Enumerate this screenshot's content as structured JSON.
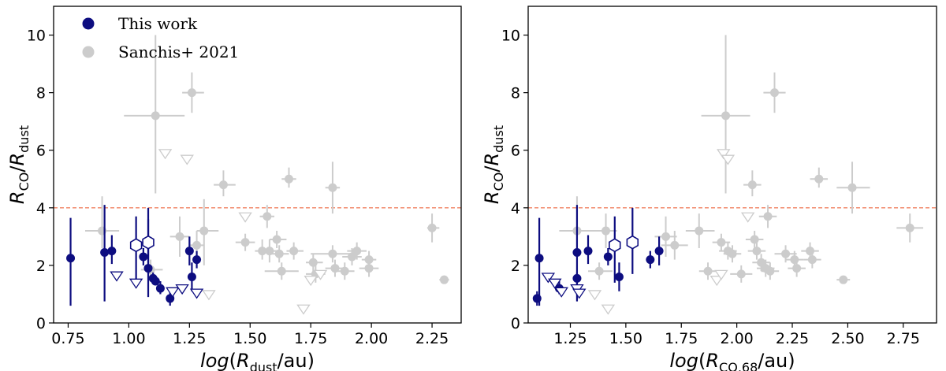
{
  "chart_data": [
    {
      "type": "scatter",
      "xlabel": "log(R_dust/au)",
      "ylabel": "R_CO/R_dust",
      "xlim": [
        0.69,
        2.37
      ],
      "ylim": [
        0,
        11
      ],
      "xticks": [
        "0.75",
        "1.00",
        "1.25",
        "1.50",
        "1.75",
        "2.00",
        "2.25"
      ],
      "yticks": [
        "0",
        "2",
        "4",
        "6",
        "8",
        "10"
      ],
      "reference_line": {
        "y": 4,
        "style": "dashed",
        "color": "#f08060"
      },
      "legend": {
        "position": "top-left",
        "entries": [
          "This work",
          "Sanchis+ 2021"
        ]
      },
      "colors": {
        "this_work": "#0d0d80",
        "sanchis": "#cccccc"
      },
      "series": [
        {
          "name": "This work",
          "marker": "filled-circle",
          "points": [
            {
              "x": 0.76,
              "y": 2.25,
              "ylo": 0.6,
              "yhi": 3.65
            },
            {
              "x": 0.9,
              "y": 2.45,
              "ylo": 0.75,
              "yhi": 4.1
            },
            {
              "x": 0.93,
              "y": 2.5,
              "ylo": 2.05,
              "yhi": 3.05
            },
            {
              "x": 1.06,
              "y": 2.3,
              "ylo": 2.0,
              "yhi": 2.6
            },
            {
              "x": 1.08,
              "y": 1.9,
              "ylo": 0.9,
              "yhi": 4.0
            },
            {
              "x": 1.1,
              "y": 1.55,
              "ylo": 1.35,
              "yhi": 1.75
            },
            {
              "x": 1.11,
              "y": 1.45,
              "ylo": 1.3,
              "yhi": 1.6
            },
            {
              "x": 1.13,
              "y": 1.2,
              "ylo": 1.0,
              "yhi": 1.45
            },
            {
              "x": 1.17,
              "y": 0.85,
              "ylo": 0.6,
              "yhi": 1.1
            },
            {
              "x": 1.25,
              "y": 2.5,
              "ylo": 2.0,
              "yhi": 3.0
            },
            {
              "x": 1.26,
              "y": 1.6,
              "ylo": 1.1,
              "yhi": 2.1
            },
            {
              "x": 1.28,
              "y": 2.2,
              "ylo": 1.9,
              "yhi": 2.5
            }
          ]
        },
        {
          "name": "This work",
          "marker": "open-hexagon",
          "points": [
            {
              "x": 1.03,
              "y": 2.7,
              "ylo": 1.4,
              "yhi": 3.7
            },
            {
              "x": 1.08,
              "y": 2.8,
              "ylo": 1.7,
              "yhi": 3.6
            }
          ]
        },
        {
          "name": "This work",
          "marker": "open-triangle-down",
          "points": [
            {
              "x": 0.95,
              "y": 1.65
            },
            {
              "x": 1.03,
              "y": 1.4
            },
            {
              "x": 1.18,
              "y": 1.1
            },
            {
              "x": 1.22,
              "y": 1.2
            },
            {
              "x": 1.28,
              "y": 1.05
            }
          ]
        },
        {
          "name": "Sanchis+ 2021",
          "marker": "filled-circle",
          "points": [
            {
              "x": 0.89,
              "y": 3.2,
              "xlo": 0.82,
              "xhi": 0.96,
              "ylo": 2.6,
              "yhi": 4.4
            },
            {
              "x": 1.09,
              "y": 1.85,
              "xlo": 1.05,
              "xhi": 1.14,
              "ylo": 1.5,
              "yhi": 2.2
            },
            {
              "x": 1.11,
              "y": 7.2,
              "xlo": 0.98,
              "xhi": 1.23,
              "ylo": 4.5,
              "yhi": 10.0
            },
            {
              "x": 1.21,
              "y": 3.0,
              "xlo": 1.17,
              "xhi": 1.25,
              "ylo": 2.3,
              "yhi": 3.7
            },
            {
              "x": 1.26,
              "y": 8.0,
              "xlo": 1.22,
              "xhi": 1.31,
              "ylo": 7.3,
              "yhi": 8.7
            },
            {
              "x": 1.28,
              "y": 2.7,
              "xlo": 1.25,
              "xhi": 1.31,
              "ylo": 2.2,
              "yhi": 3.2
            },
            {
              "x": 1.31,
              "y": 3.2,
              "xlo": 1.28,
              "xhi": 1.37,
              "ylo": 2.0,
              "yhi": 4.3
            },
            {
              "x": 1.39,
              "y": 4.8,
              "xlo": 1.35,
              "xhi": 1.44,
              "ylo": 4.4,
              "yhi": 5.3
            },
            {
              "x": 1.48,
              "y": 2.8,
              "xlo": 1.44,
              "xhi": 1.52,
              "ylo": 2.5,
              "yhi": 3.1
            },
            {
              "x": 1.55,
              "y": 2.5,
              "xlo": 1.52,
              "xhi": 1.59,
              "ylo": 2.2,
              "yhi": 2.9
            },
            {
              "x": 1.57,
              "y": 3.7,
              "xlo": 1.54,
              "xhi": 1.6,
              "ylo": 3.3,
              "yhi": 4.1
            },
            {
              "x": 1.58,
              "y": 2.5,
              "xlo": 1.54,
              "xhi": 1.62,
              "ylo": 2.1,
              "yhi": 2.9
            },
            {
              "x": 1.61,
              "y": 2.9,
              "xlo": 1.58,
              "xhi": 1.65,
              "ylo": 2.6,
              "yhi": 3.2
            },
            {
              "x": 1.62,
              "y": 2.4,
              "xlo": 1.59,
              "xhi": 1.66,
              "ylo": 2.1,
              "yhi": 2.7
            },
            {
              "x": 1.63,
              "y": 1.8,
              "xlo": 1.56,
              "xhi": 1.7,
              "ylo": 1.5,
              "yhi": 2.1
            },
            {
              "x": 1.66,
              "y": 5.0,
              "xlo": 1.63,
              "xhi": 1.69,
              "ylo": 4.7,
              "yhi": 5.4
            },
            {
              "x": 1.68,
              "y": 2.5,
              "xlo": 1.65,
              "xhi": 1.72,
              "ylo": 2.2,
              "yhi": 2.8
            },
            {
              "x": 1.76,
              "y": 2.1,
              "xlo": 1.73,
              "xhi": 1.8,
              "ylo": 1.8,
              "yhi": 2.4
            },
            {
              "x": 1.77,
              "y": 1.7,
              "xlo": 1.73,
              "xhi": 1.81,
              "ylo": 1.4,
              "yhi": 2.0
            },
            {
              "x": 1.84,
              "y": 4.7,
              "xlo": 1.81,
              "xhi": 1.87,
              "ylo": 3.8,
              "yhi": 5.6
            },
            {
              "x": 1.84,
              "y": 2.4,
              "xlo": 1.75,
              "xhi": 1.93,
              "ylo": 2.1,
              "yhi": 2.7
            },
            {
              "x": 1.85,
              "y": 1.9,
              "xlo": 1.81,
              "xhi": 1.89,
              "ylo": 1.6,
              "yhi": 2.2
            },
            {
              "x": 1.89,
              "y": 1.8,
              "xlo": 1.86,
              "xhi": 1.93,
              "ylo": 1.5,
              "yhi": 2.1
            },
            {
              "x": 1.92,
              "y": 2.3,
              "xlo": 1.88,
              "xhi": 1.96,
              "ylo": 2.0,
              "yhi": 2.6
            },
            {
              "x": 1.94,
              "y": 2.5,
              "xlo": 1.9,
              "xhi": 1.98,
              "ylo": 2.2,
              "yhi": 2.8
            },
            {
              "x": 1.99,
              "y": 2.2,
              "xlo": 1.96,
              "xhi": 2.02,
              "ylo": 1.9,
              "yhi": 2.5
            },
            {
              "x": 1.99,
              "y": 1.9,
              "xlo": 1.95,
              "xhi": 2.03,
              "ylo": 1.6,
              "yhi": 2.2
            },
            {
              "x": 2.25,
              "y": 3.3,
              "xlo": 2.23,
              "xhi": 2.28,
              "ylo": 2.8,
              "yhi": 3.8
            },
            {
              "x": 2.3,
              "y": 1.5,
              "xlo": 2.28,
              "xhi": 2.32,
              "ylo": 1.4,
              "yhi": 1.6
            }
          ]
        },
        {
          "name": "Sanchis+ 2021",
          "marker": "open-triangle-down",
          "points": [
            {
              "x": 1.15,
              "y": 5.9
            },
            {
              "x": 1.24,
              "y": 5.7
            },
            {
              "x": 1.33,
              "y": 1.0
            },
            {
              "x": 1.48,
              "y": 3.7
            },
            {
              "x": 1.72,
              "y": 0.5
            },
            {
              "x": 1.75,
              "y": 1.5
            },
            {
              "x": 1.79,
              "y": 1.7
            }
          ]
        }
      ]
    },
    {
      "type": "scatter",
      "xlabel": "log(R_CO,68/au)",
      "ylabel": "R_CO/R_dust",
      "xlim": [
        1.06,
        2.9
      ],
      "ylim": [
        0,
        11
      ],
      "xticks": [
        "1.25",
        "1.50",
        "1.75",
        "2.00",
        "2.25",
        "2.50",
        "2.75"
      ],
      "yticks": [
        "0",
        "2",
        "4",
        "6",
        "8",
        "10"
      ],
      "reference_line": {
        "y": 4,
        "style": "dashed",
        "color": "#f08060"
      },
      "colors": {
        "this_work": "#0d0d80",
        "sanchis": "#cccccc"
      },
      "series": [
        {
          "name": "This work",
          "marker": "filled-circle",
          "points": [
            {
              "x": 1.1,
              "y": 0.85,
              "ylo": 0.6,
              "yhi": 1.1
            },
            {
              "x": 1.11,
              "y": 2.25,
              "ylo": 0.6,
              "yhi": 3.65
            },
            {
              "x": 1.2,
              "y": 1.2,
              "ylo": 1.0,
              "yhi": 1.45
            },
            {
              "x": 1.28,
              "y": 2.45,
              "ylo": 0.75,
              "yhi": 4.1
            },
            {
              "x": 1.28,
              "y": 1.55,
              "ylo": 1.3,
              "yhi": 1.75
            },
            {
              "x": 1.33,
              "y": 2.5,
              "ylo": 2.05,
              "yhi": 3.05
            },
            {
              "x": 1.42,
              "y": 2.3,
              "ylo": 2.0,
              "yhi": 2.6
            },
            {
              "x": 1.47,
              "y": 1.6,
              "ylo": 1.1,
              "yhi": 2.1
            },
            {
              "x": 1.61,
              "y": 2.2,
              "ylo": 1.9,
              "yhi": 2.5
            },
            {
              "x": 1.65,
              "y": 2.5,
              "ylo": 2.0,
              "yhi": 3.0
            }
          ]
        },
        {
          "name": "This work",
          "marker": "open-hexagon",
          "points": [
            {
              "x": 1.45,
              "y": 2.7,
              "ylo": 1.4,
              "yhi": 3.7
            },
            {
              "x": 1.53,
              "y": 2.8,
              "ylo": 1.7,
              "yhi": 4.0
            }
          ]
        },
        {
          "name": "This work",
          "marker": "open-triangle-down",
          "points": [
            {
              "x": 1.15,
              "y": 1.6
            },
            {
              "x": 1.18,
              "y": 1.4
            },
            {
              "x": 1.21,
              "y": 1.1
            },
            {
              "x": 1.28,
              "y": 1.2
            },
            {
              "x": 1.29,
              "y": 1.05
            }
          ]
        },
        {
          "name": "Sanchis+ 2021",
          "marker": "filled-circle",
          "points": [
            {
              "x": 1.28,
              "y": 3.2,
              "xlo": 1.2,
              "xhi": 1.38,
              "ylo": 2.6,
              "yhi": 4.4
            },
            {
              "x": 1.38,
              "y": 1.8,
              "xlo": 1.33,
              "xhi": 1.44,
              "ylo": 1.5,
              "yhi": 2.1
            },
            {
              "x": 1.41,
              "y": 3.2,
              "xlo": 1.37,
              "xhi": 1.46,
              "ylo": 2.6,
              "yhi": 3.8
            },
            {
              "x": 1.68,
              "y": 3.0,
              "xlo": 1.63,
              "xhi": 1.73,
              "ylo": 2.3,
              "yhi": 3.7
            },
            {
              "x": 1.72,
              "y": 2.7,
              "xlo": 1.66,
              "xhi": 1.78,
              "ylo": 2.2,
              "yhi": 3.2
            },
            {
              "x": 1.83,
              "y": 3.2,
              "xlo": 1.77,
              "xhi": 1.9,
              "ylo": 2.6,
              "yhi": 3.8
            },
            {
              "x": 1.87,
              "y": 1.8,
              "xlo": 1.83,
              "xhi": 1.92,
              "ylo": 1.5,
              "yhi": 2.1
            },
            {
              "x": 1.93,
              "y": 2.8,
              "xlo": 1.89,
              "xhi": 1.97,
              "ylo": 2.5,
              "yhi": 3.1
            },
            {
              "x": 1.95,
              "y": 7.2,
              "xlo": 1.84,
              "xhi": 2.06,
              "ylo": 4.5,
              "yhi": 10.0
            },
            {
              "x": 1.96,
              "y": 2.5,
              "xlo": 1.92,
              "xhi": 2.0,
              "ylo": 2.2,
              "yhi": 2.8
            },
            {
              "x": 1.98,
              "y": 2.4,
              "xlo": 1.94,
              "xhi": 2.02,
              "ylo": 2.1,
              "yhi": 2.7
            },
            {
              "x": 2.02,
              "y": 1.7,
              "xlo": 1.97,
              "xhi": 2.07,
              "ylo": 1.4,
              "yhi": 2.0
            },
            {
              "x": 2.07,
              "y": 4.8,
              "xlo": 2.03,
              "xhi": 2.11,
              "ylo": 4.4,
              "yhi": 5.3
            },
            {
              "x": 2.08,
              "y": 2.9,
              "xlo": 2.04,
              "xhi": 2.12,
              "ylo": 2.6,
              "yhi": 3.2
            },
            {
              "x": 2.09,
              "y": 2.5,
              "xlo": 2.05,
              "xhi": 2.13,
              "ylo": 2.2,
              "yhi": 2.8
            },
            {
              "x": 2.11,
              "y": 2.1,
              "xlo": 2.07,
              "xhi": 2.15,
              "ylo": 1.8,
              "yhi": 2.4
            },
            {
              "x": 2.13,
              "y": 1.9,
              "xlo": 2.09,
              "xhi": 2.17,
              "ylo": 1.6,
              "yhi": 2.2
            },
            {
              "x": 2.15,
              "y": 1.8,
              "xlo": 2.11,
              "xhi": 2.19,
              "ylo": 1.5,
              "yhi": 2.1
            },
            {
              "x": 2.14,
              "y": 3.7,
              "xlo": 2.1,
              "xhi": 2.18,
              "ylo": 3.3,
              "yhi": 4.1
            },
            {
              "x": 2.17,
              "y": 8.0,
              "xlo": 2.12,
              "xhi": 2.22,
              "ylo": 7.3,
              "yhi": 8.7
            },
            {
              "x": 2.22,
              "y": 2.4,
              "xlo": 2.17,
              "xhi": 2.27,
              "ylo": 2.1,
              "yhi": 2.7
            },
            {
              "x": 2.26,
              "y": 2.2,
              "xlo": 2.22,
              "xhi": 2.3,
              "ylo": 1.9,
              "yhi": 2.5
            },
            {
              "x": 2.27,
              "y": 1.9,
              "xlo": 2.23,
              "xhi": 2.31,
              "ylo": 1.6,
              "yhi": 2.2
            },
            {
              "x": 2.33,
              "y": 2.5,
              "xlo": 2.29,
              "xhi": 2.37,
              "ylo": 2.2,
              "yhi": 2.8
            },
            {
              "x": 2.34,
              "y": 2.2,
              "xlo": 2.3,
              "xhi": 2.38,
              "ylo": 1.9,
              "yhi": 2.5
            },
            {
              "x": 2.37,
              "y": 5.0,
              "xlo": 2.33,
              "xhi": 2.41,
              "ylo": 4.7,
              "yhi": 5.4
            },
            {
              "x": 2.48,
              "y": 1.5,
              "xlo": 2.45,
              "xhi": 2.51,
              "ylo": 1.4,
              "yhi": 1.6
            },
            {
              "x": 2.52,
              "y": 4.7,
              "xlo": 2.45,
              "xhi": 2.6,
              "ylo": 3.8,
              "yhi": 5.6
            },
            {
              "x": 2.78,
              "y": 3.3,
              "xlo": 2.72,
              "xhi": 2.84,
              "ylo": 2.8,
              "yhi": 3.8
            }
          ]
        },
        {
          "name": "Sanchis+ 2021",
          "marker": "open-triangle-down",
          "points": [
            {
              "x": 1.42,
              "y": 0.5
            },
            {
              "x": 1.36,
              "y": 1.0
            },
            {
              "x": 1.91,
              "y": 1.5
            },
            {
              "x": 1.93,
              "y": 1.7
            },
            {
              "x": 1.94,
              "y": 5.9
            },
            {
              "x": 1.96,
              "y": 5.7
            },
            {
              "x": 2.05,
              "y": 3.7
            }
          ]
        }
      ]
    }
  ]
}
